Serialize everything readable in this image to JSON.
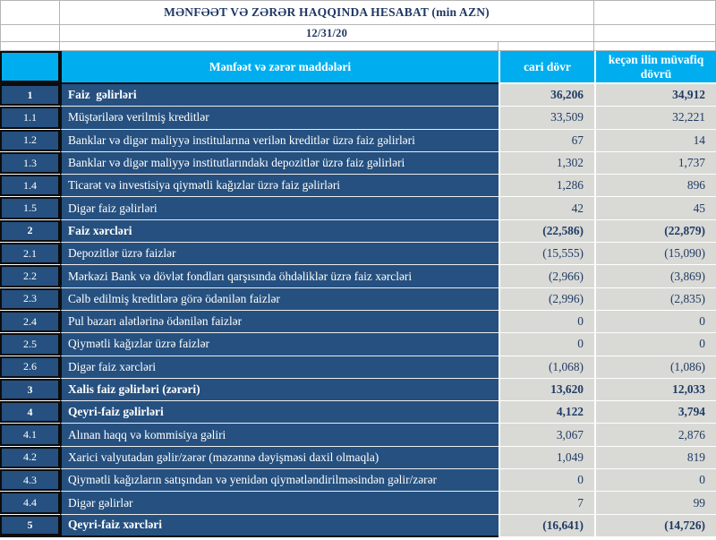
{
  "report": {
    "title": "MƏNFƏƏT VƏ ZƏRƏR HAQQINDA HESABAT (min AZN)",
    "date": "12/31/20"
  },
  "table": {
    "columns": {
      "items_header": "Mənfəət və zərər maddələri",
      "current_period": "cari dövr",
      "previous_period": "keçən ilin müvafiq dövrü"
    },
    "rows": [
      {
        "no": "1",
        "label": "Faiz  gəlirləri",
        "current": "36,206",
        "previous": "34,912",
        "bold": true
      },
      {
        "no": "1.1",
        "label": "Müştərilərə verilmiş kreditlər",
        "current": "33,509",
        "previous": "32,221",
        "bold": false
      },
      {
        "no": "1.2",
        "label": "Banklar və digər maliyyə institularına verilən kreditlər üzrə faiz gəlirləri",
        "current": "67",
        "previous": "14",
        "bold": false
      },
      {
        "no": "1.3",
        "label": "Banklar və digər maliyyə institutlarındakı depozitlər üzrə faiz gəlirləri",
        "current": "1,302",
        "previous": "1,737",
        "bold": false
      },
      {
        "no": "1.4",
        "label": "Ticarət və investisiya qiymətli kağızlar üzrə faiz gəlirləri",
        "current": "1,286",
        "previous": "896",
        "bold": false
      },
      {
        "no": "1.5",
        "label": "Digər faiz gəlirləri",
        "current": "42",
        "previous": "45",
        "bold": false
      },
      {
        "no": "2",
        "label": "Faiz xərcləri",
        "current": "(22,586)",
        "previous": "(22,879)",
        "bold": true
      },
      {
        "no": "2.1",
        "label": "Depozitlər üzrə faizlər",
        "current": "(15,555)",
        "previous": "(15,090)",
        "bold": false
      },
      {
        "no": "2.2",
        "label": "Mərkəzi Bank və dövlət fondları qarşısında öhdəliklər üzrə faiz xərcləri",
        "current": "(2,966)",
        "previous": "(3,869)",
        "bold": false
      },
      {
        "no": "2.3",
        "label": "Cəlb edilmiş kreditlərə görə ödənilən faizlər",
        "current": "(2,996)",
        "previous": "(2,835)",
        "bold": false
      },
      {
        "no": "2.4",
        "label": "Pul bazarı alətlərinə ödənilən faizlər",
        "current": "0",
        "previous": "0",
        "bold": false
      },
      {
        "no": "2.5",
        "label": "Qiymətli kağızlar üzrə faizlər",
        "current": "0",
        "previous": "0",
        "bold": false
      },
      {
        "no": "2.6",
        "label": "Digər faiz xərcləri",
        "current": "(1,068)",
        "previous": "(1,086)",
        "bold": false
      },
      {
        "no": "3",
        "label": "Xalis faiz gəlirləri (zərəri)",
        "current": "13,620",
        "previous": "12,033",
        "bold": true
      },
      {
        "no": "4",
        "label": "Qeyri-faiz gəlirləri",
        "current": "4,122",
        "previous": "3,794",
        "bold": true
      },
      {
        "no": "4.1",
        "label": "Alınan haqq və kommisiya gəliri",
        "current": "3,067",
        "previous": "2,876",
        "bold": false
      },
      {
        "no": "4.2",
        "label": "Xarici valyutadan gəlir/zərər (məzənnə dəyişməsi daxil olmaqla)",
        "current": "1,049",
        "previous": "819",
        "bold": false
      },
      {
        "no": "4.3",
        "label": "Qiymətli kağızların satışından və yenidən qiymətləndirilməsindən gəlir/zərər",
        "current": "0",
        "previous": "0",
        "bold": false
      },
      {
        "no": "4.4",
        "label": "Digər gəlirlər",
        "current": "7",
        "previous": "99",
        "bold": false
      },
      {
        "no": "5",
        "label": "Qeyri-faiz xərcləri",
        "current": "(16,641)",
        "previous": "(14,726)",
        "bold": true
      }
    ]
  },
  "colors": {
    "header_cyan": "#00AEEF",
    "row_navy": "#25507F",
    "value_cell_gray": "#D9D9D6",
    "value_text_navy": "#1F3C64",
    "title_text_navy": "#1F3864"
  }
}
